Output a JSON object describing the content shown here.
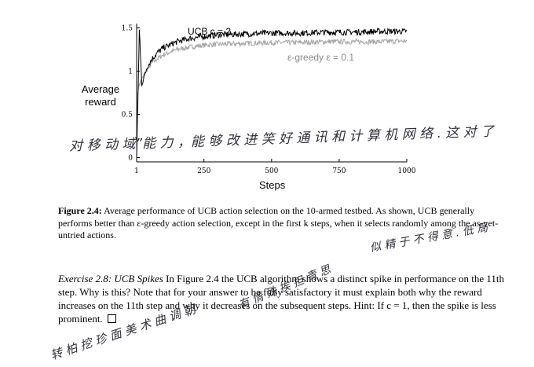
{
  "chart_data": {
    "type": "line",
    "xlabel": "Steps",
    "ylabel": "Average reward",
    "xlim": [
      1,
      1000
    ],
    "ylim": [
      -0.05,
      1.55
    ],
    "x_ticks": [
      1,
      250,
      500,
      750,
      1000
    ],
    "y_ticks": [
      0,
      0.5,
      1,
      1.5
    ],
    "y_tick_labels": [
      "0",
      "0.5",
      "1",
      "1.5"
    ],
    "series": [
      {
        "name": "UCB c = 2",
        "color": "#000000",
        "x": [
          1,
          5,
          11,
          20,
          40,
          60,
          80,
          100,
          150,
          200,
          250,
          300,
          400,
          500,
          600,
          700,
          800,
          900,
          1000
        ],
        "values": [
          0.0,
          0.55,
          1.48,
          0.85,
          1.05,
          1.15,
          1.22,
          1.27,
          1.34,
          1.38,
          1.4,
          1.42,
          1.43,
          1.44,
          1.44,
          1.45,
          1.45,
          1.46,
          1.46
        ]
      },
      {
        "name": "ε-greedy ε = 0.1",
        "color": "#a6a6a6",
        "x": [
          1,
          5,
          11,
          20,
          40,
          60,
          80,
          100,
          150,
          200,
          250,
          300,
          400,
          500,
          600,
          700,
          800,
          900,
          1000
        ],
        "values": [
          0.0,
          0.75,
          0.85,
          0.9,
          1.02,
          1.1,
          1.15,
          1.19,
          1.25,
          1.28,
          1.3,
          1.31,
          1.32,
          1.33,
          1.33,
          1.34,
          1.34,
          1.34,
          1.35
        ]
      }
    ],
    "legend": [
      "UCB  c = 2",
      "ε-greedy  ε = 0.1"
    ],
    "grid": false
  },
  "caption": {
    "lead": "Figure 2.4:",
    "text": " Average performance of UCB action selection on the 10-armed testbed. As shown, UCB generally performs better than ε-greedy action selection, except in the first k steps, when it selects randomly among the as-yet-untried actions."
  },
  "exercise": {
    "title": "Exercise 2.8: UCB Spikes",
    "text": "  In Figure 2.4 the UCB algorithm shows a distinct spike in performance on the 11th step. Why is this? Note that for your answer to be fully satisfactory it must explain both why the reward increases on the 11th step and why it decreases on the subsequent steps. Hint: If c = 1, then the spike is less prominent."
  },
  "handwriting": {
    "line1": "对 移 动 域”能 力 ，能 够 改 进 笑 好 通 讯 和 计 算 机 网 络 . 这 对 了",
    "line2": "似 精 于 不 得 意 . 低 局",
    "line3": "有 情 殊 挨 担 青 思",
    "line4": "转 柏 挖 珍 面 美 术 曲 调 朝"
  }
}
